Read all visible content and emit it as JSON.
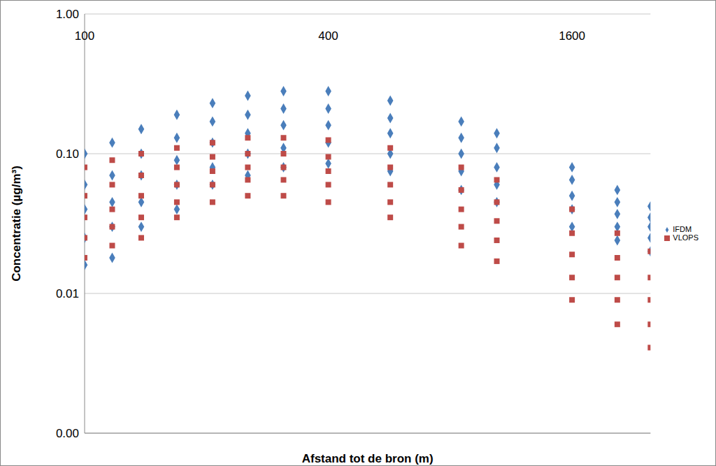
{
  "chart_data": {
    "type": "scatter",
    "x_label": "Afstand tot de bron (m)",
    "y_label": "Concentratie (µg/m³)",
    "log": true,
    "grid": true,
    "legend": "right",
    "xlim": [
      100,
      2500
    ],
    "xticks": [
      100,
      400,
      1600
    ],
    "ylim": [
      0.001,
      1
    ],
    "yticks": [
      {
        "value": 0.001,
        "label": "0.00"
      },
      {
        "value": 0.01,
        "label": "0.01"
      },
      {
        "value": 0.1,
        "label": "0.10"
      },
      {
        "value": 1,
        "label": "1.00"
      }
    ],
    "series": [
      {
        "name": "IFDM",
        "color": "#4a7ebb",
        "marker": "diamond",
        "x": [
          100,
          100,
          100,
          100,
          100,
          117,
          117,
          117,
          117,
          117,
          138,
          138,
          138,
          138,
          138,
          169,
          169,
          169,
          169,
          169,
          207,
          207,
          207,
          207,
          207,
          253,
          253,
          253,
          253,
          253,
          310,
          310,
          310,
          310,
          310,
          400,
          400,
          400,
          400,
          400,
          569,
          569,
          569,
          569,
          569,
          852,
          852,
          852,
          852,
          852,
          1043,
          1043,
          1043,
          1043,
          1043,
          1600,
          1600,
          1600,
          1600,
          1600,
          2070,
          2070,
          2070,
          2070,
          2070,
          2500,
          2500,
          2500,
          2500,
          2500
        ],
        "values": [
          0.1,
          0.06,
          0.04,
          0.025,
          0.016,
          0.12,
          0.07,
          0.045,
          0.03,
          0.018,
          0.15,
          0.1,
          0.07,
          0.045,
          0.03,
          0.19,
          0.13,
          0.09,
          0.06,
          0.04,
          0.23,
          0.17,
          0.12,
          0.08,
          0.06,
          0.26,
          0.19,
          0.14,
          0.1,
          0.07,
          0.28,
          0.21,
          0.16,
          0.11,
          0.08,
          0.28,
          0.21,
          0.16,
          0.12,
          0.085,
          0.24,
          0.18,
          0.14,
          0.1,
          0.075,
          0.17,
          0.13,
          0.1,
          0.075,
          0.055,
          0.14,
          0.11,
          0.08,
          0.06,
          0.045,
          0.08,
          0.065,
          0.05,
          0.04,
          0.03,
          0.055,
          0.045,
          0.037,
          0.03,
          0.024,
          0.042,
          0.035,
          0.03,
          0.025,
          0.02
        ]
      },
      {
        "name": "VLOPS",
        "color": "#be4b48",
        "marker": "square",
        "x": [
          100,
          100,
          100,
          100,
          100,
          117,
          117,
          117,
          117,
          117,
          138,
          138,
          138,
          138,
          138,
          169,
          169,
          169,
          169,
          169,
          207,
          207,
          207,
          207,
          207,
          253,
          253,
          253,
          253,
          253,
          310,
          310,
          310,
          310,
          310,
          400,
          400,
          400,
          400,
          400,
          569,
          569,
          569,
          569,
          569,
          852,
          852,
          852,
          852,
          852,
          1043,
          1043,
          1043,
          1043,
          1043,
          1600,
          1600,
          1600,
          1600,
          1600,
          2070,
          2070,
          2070,
          2070,
          2070,
          2500,
          2500,
          2500,
          2500,
          2500
        ],
        "values": [
          0.08,
          0.05,
          0.035,
          0.025,
          0.018,
          0.09,
          0.06,
          0.04,
          0.03,
          0.022,
          0.1,
          0.07,
          0.05,
          0.035,
          0.025,
          0.11,
          0.08,
          0.06,
          0.045,
          0.035,
          0.12,
          0.095,
          0.075,
          0.06,
          0.045,
          0.13,
          0.1,
          0.08,
          0.065,
          0.05,
          0.13,
          0.1,
          0.08,
          0.065,
          0.05,
          0.125,
          0.095,
          0.075,
          0.06,
          0.045,
          0.11,
          0.08,
          0.06,
          0.045,
          0.035,
          0.08,
          0.055,
          0.04,
          0.03,
          0.022,
          0.065,
          0.045,
          0.033,
          0.024,
          0.017,
          0.04,
          0.027,
          0.019,
          0.013,
          0.009,
          0.027,
          0.018,
          0.013,
          0.009,
          0.006,
          0.02,
          0.013,
          0.009,
          0.006,
          0.0041
        ]
      }
    ]
  }
}
